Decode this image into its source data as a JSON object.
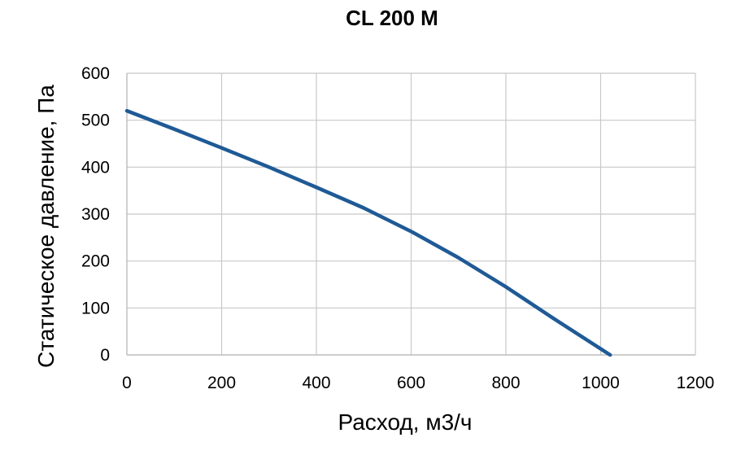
{
  "chart_data": {
    "type": "line",
    "title": "CL 200 M",
    "xlabel": "Расход, м3/ч",
    "ylabel": "Статическое давление, Па",
    "xlim": [
      0,
      1200
    ],
    "ylim": [
      0,
      600
    ],
    "x_ticks": [
      0,
      200,
      400,
      600,
      800,
      1000,
      1200
    ],
    "y_ticks": [
      0,
      100,
      200,
      300,
      400,
      500,
      600
    ],
    "grid": true,
    "colors": {
      "series": "#1f5a96"
    },
    "series": [
      {
        "name": "",
        "x": [
          0,
          100,
          200,
          300,
          400,
          500,
          600,
          700,
          800,
          900,
          1020
        ],
        "y": [
          520,
          481,
          441,
          400,
          357,
          313,
          263,
          207,
          145,
          78,
          0
        ]
      }
    ]
  }
}
